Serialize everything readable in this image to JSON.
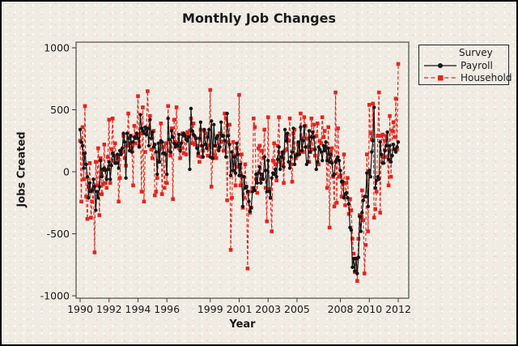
{
  "colors": {
    "background": "#f0ece3",
    "text": "#1a1a1a",
    "axis_line": "#59594f",
    "tick": "#3c3c3c",
    "payroll": "#151515",
    "household": "#e8231c"
  },
  "chart_data": {
    "type": "line",
    "title": "Monthly Job Changes",
    "xlabel": "Year",
    "ylabel": "Jobs Created",
    "legend_title": "Survey",
    "legend_position": "right",
    "grid": false,
    "x_ticks": [
      1990,
      1992,
      1994,
      1996,
      1999,
      2001,
      2003,
      2005,
      2008,
      2010,
      2012
    ],
    "y_ticks": [
      1000,
      500,
      0,
      -500,
      -1000
    ],
    "xlim": [
      1989.72,
      2012.72
    ],
    "ylim": [
      -1020,
      1045
    ],
    "x_start_year": 1990,
    "x_step": "monthly",
    "series": [
      {
        "name": "Payroll",
        "color": "#151515",
        "marker": "circle",
        "line": "solid",
        "values": [
          340,
          240,
          210,
          30,
          150,
          60,
          -40,
          -210,
          -90,
          -160,
          -150,
          -60,
          -120,
          -310,
          -160,
          -210,
          -120,
          90,
          -40,
          20,
          30,
          10,
          -60,
          20,
          80,
          -60,
          50,
          150,
          130,
          70,
          70,
          140,
          30,
          170,
          140,
          190,
          310,
          240,
          -50,
          310,
          270,
          170,
          290,
          160,
          240,
          280,
          270,
          310,
          270,
          200,
          460,
          350,
          330,
          310,
          360,
          300,
          350,
          210,
          420,
          270,
          320,
          200,
          220,
          160,
          -20,
          230,
          80,
          250,
          240,
          150,
          150,
          140,
          -20,
          430,
          260,
          160,
          330,
          280,
          230,
          200,
          220,
          210,
          300,
          170,
          230,
          300,
          310,
          290,
          260,
          250,
          280,
          20,
          510,
          330,
          300,
          290,
          270,
          190,
          150,
          270,
          400,
          210,
          120,
          340,
          220,
          190,
          280,
          340,
          120,
          410,
          110,
          380,
          210,
          270,
          290,
          170,
          200,
          400,
          290,
          290,
          250,
          120,
          470,
          290,
          220,
          -30,
          160,
          10,
          120,
          -10,
          230,
          140,
          -30,
          60,
          -30,
          -280,
          -40,
          -130,
          -120,
          -160,
          -240,
          -320,
          -290,
          -160,
          -130,
          -150,
          -20,
          -90,
          -10,
          40,
          -90,
          -20,
          -60,
          120,
          10,
          -160,
          90,
          -160,
          -210,
          -50,
          -10,
          -20,
          20,
          -40,
          100,
          200,
          20,
          120,
          160,
          40,
          340,
          250,
          310,
          80,
          30,
          120,
          160,
          350,
          60,
          130,
          140,
          240,
          140,
          360,
          170,
          250,
          370,
          200,
          60,
          80,
          330,
          160,
          280,
          320,
          280,
          180,
          20,
          80,
          200,
          180,
          160,
          90,
          210,
          170,
          240,
          90,
          190,
          80,
          140,
          70,
          -30,
          -20,
          80,
          100,
          120,
          90,
          10,
          -80,
          -80,
          -210,
          -180,
          -170,
          -210,
          -260,
          -450,
          -470,
          -770,
          -700,
          -800,
          -700,
          -820,
          -690,
          -360,
          -480,
          -330,
          -230,
          -200,
          -200,
          -10,
          -280,
          10,
          -40,
          160,
          250,
          520,
          -130,
          -70,
          -40,
          -60,
          240,
          140,
          70,
          70,
          170,
          210,
          320,
          100,
          210,
          80,
          130,
          220,
          180,
          160,
          200,
          240
        ]
      },
      {
        "name": "Household",
        "color": "#e8231c",
        "marker": "square",
        "line": "dashed",
        "values": [
          250,
          -240,
          360,
          -60,
          530,
          -200,
          -380,
          -120,
          70,
          -370,
          -240,
          -140,
          -650,
          80,
          -110,
          190,
          -350,
          110,
          -180,
          -100,
          220,
          -90,
          -130,
          120,
          420,
          -90,
          180,
          430,
          90,
          230,
          110,
          120,
          -240,
          -50,
          170,
          160,
          290,
          110,
          50,
          210,
          470,
          230,
          290,
          190,
          -110,
          370,
          230,
          290,
          610,
          210,
          310,
          -160,
          520,
          -240,
          160,
          340,
          650,
          350,
          450,
          180,
          110,
          330,
          -190,
          -160,
          -50,
          90,
          180,
          390,
          -180,
          200,
          -130,
          230,
          -90,
          530,
          170,
          130,
          350,
          -220,
          420,
          240,
          520,
          230,
          190,
          110,
          190,
          310,
          150,
          290,
          140,
          320,
          290,
          330,
          430,
          230,
          390,
          220,
          270,
          210,
          130,
          80,
          340,
          120,
          170,
          330,
          220,
          310,
          130,
          210,
          660,
          -120,
          110,
          140,
          210,
          110,
          280,
          190,
          310,
          240,
          290,
          170,
          470,
          430,
          -230,
          240,
          380,
          -630,
          -210,
          240,
          130,
          -110,
          190,
          40,
          620,
          -110,
          140,
          -290,
          -210,
          60,
          -120,
          -780,
          -160,
          -330,
          -290,
          -130,
          430,
          360,
          -60,
          -170,
          190,
          210,
          -60,
          170,
          110,
          340,
          -130,
          -400,
          440,
          -140,
          -210,
          -480,
          90,
          230,
          60,
          -70,
          210,
          440,
          80,
          50,
          150,
          -90,
          170,
          180,
          300,
          250,
          430,
          60,
          -80,
          310,
          340,
          110,
          130,
          220,
          160,
          470,
          270,
          160,
          440,
          370,
          270,
          200,
          80,
          160,
          430,
          180,
          380,
          130,
          290,
          390,
          60,
          250,
          230,
          440,
          280,
          330,
          200,
          -130,
          360,
          -450,
          160,
          190,
          -40,
          -280,
          640,
          -250,
          350,
          -40,
          -30,
          -200,
          -100,
          140,
          -270,
          -90,
          -50,
          -340,
          -220,
          -310,
          -540,
          -660,
          -810,
          -700,
          -880,
          -540,
          -350,
          -370,
          -150,
          -390,
          -820,
          -590,
          140,
          -480,
          540,
          310,
          260,
          550,
          -370,
          -300,
          -160,
          290,
          640,
          -330,
          290,
          300,
          120,
          250,
          290,
          120,
          -110,
          450,
          -40,
          330,
          400,
          280,
          590,
          180,
          870
        ]
      }
    ]
  }
}
